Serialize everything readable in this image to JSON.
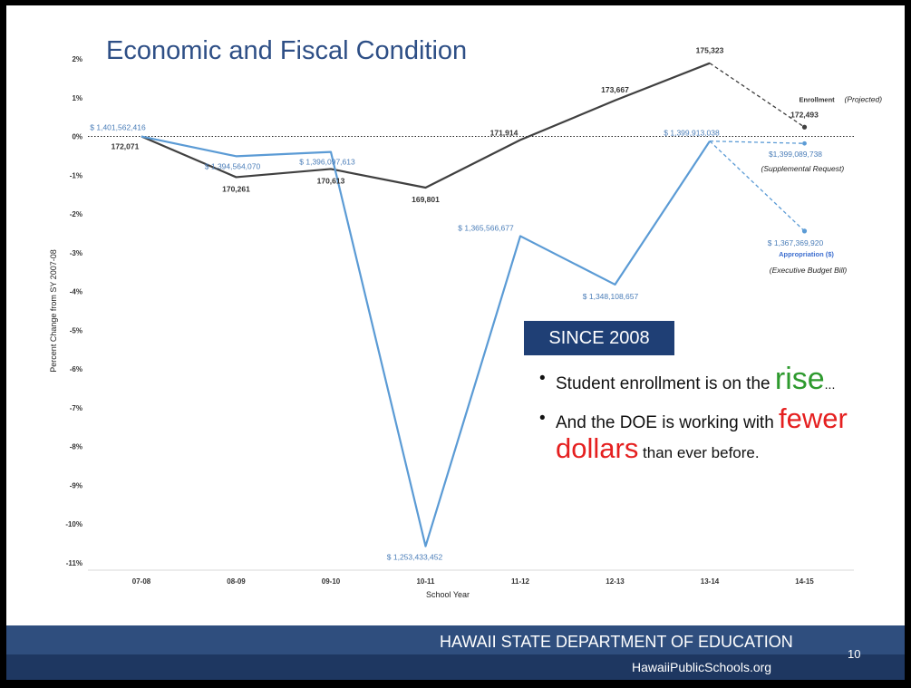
{
  "slide": {
    "title": "Economic and Fiscal Condition",
    "since_label": "SINCE 2008",
    "bullets": [
      {
        "pre": "Student enrollment is on the ",
        "emph": "rise",
        "post": "..."
      },
      {
        "pre": "And the DOE is working with ",
        "emph": "fewer",
        "emph2": "dollars",
        "post": " than ever before."
      }
    ],
    "footer_org": "HAWAII STATE DEPARTMENT OF EDUCATION",
    "footer_url": "HawaiiPublicSchools.org",
    "page_number": "10"
  },
  "colors": {
    "title": "#2e4f86",
    "enrollment": "#404040",
    "appropriation": "#5b9bd5",
    "since_box": "#1f3f75",
    "footer": "#2f4e7e",
    "footer_dark": "#1e3761",
    "rise": "#2e9a2e",
    "fewer": "#e52020"
  },
  "chart_data": {
    "type": "line",
    "xlabel": "School Year",
    "ylabel": "Percent Change from SY 2007-08",
    "categories": [
      "07-08",
      "08-09",
      "09-10",
      "10-11",
      "11-12",
      "12-13",
      "13-14",
      "14-15"
    ],
    "ylim": [
      -11,
      2
    ],
    "yticks": [
      "2%",
      "1%",
      "0%",
      "-1%",
      "-2%",
      "-3%",
      "-4%",
      "-5%",
      "-6%",
      "-7%",
      "-8%",
      "-9%",
      "-10%",
      "-11%"
    ],
    "zero_line": "dotted",
    "series": [
      {
        "name": "Enrollment",
        "suffix": "(Projected)",
        "values": [
          0,
          -1.05,
          -0.84,
          -1.32,
          -0.09,
          0.93,
          1.89,
          0.24
        ],
        "labels": [
          "172,071",
          "170,261",
          "170,613",
          "169,801",
          "171,914",
          "173,667",
          "175,323",
          "172,493"
        ],
        "projected_from_index": 6
      },
      {
        "name": "Appropriation ($)",
        "note": "(Executive Budget Bill)",
        "values": [
          0,
          -0.51,
          -0.4,
          -10.57,
          -2.57,
          -3.82,
          -0.12,
          -2.44
        ],
        "labels": [
          "$ 1,401,562,416",
          "$ 1,394,564,070",
          "$ 1,396,097,613",
          "$ 1,253,433,452",
          "$ 1,365,566,677",
          "$ 1,348,108,657",
          "$ 1,399,913,038",
          "$ 1,367,369,920"
        ],
        "projected_from_index": 6
      },
      {
        "name": "Supplemental Request",
        "note": "(Supplemental Request)",
        "x_index": 7,
        "value": -0.18,
        "label": "$1,399,089,738"
      }
    ]
  }
}
